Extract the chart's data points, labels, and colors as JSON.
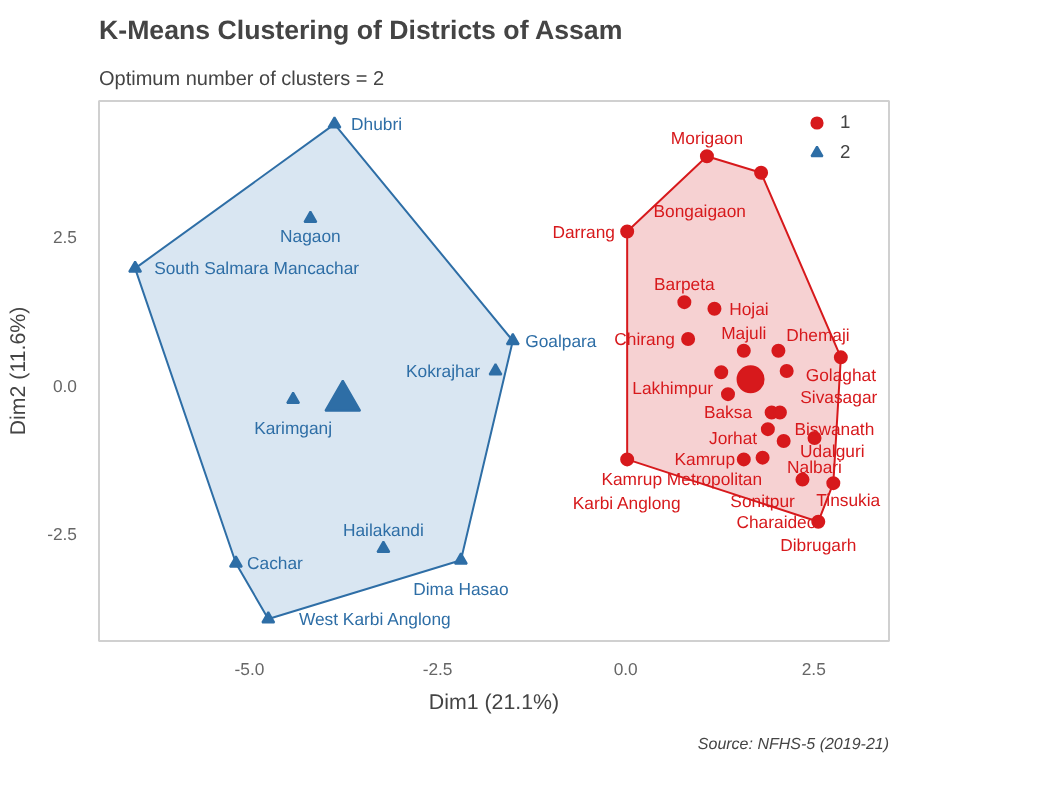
{
  "chart_data": {
    "type": "scatter",
    "title": "K-Means Clustering of Districts of Assam",
    "subtitle": "Optimum number of clusters = 2",
    "xlabel": "Dim1 (21.1%)",
    "ylabel": "Dim2 (11.6%)",
    "xlim": [
      -7.0,
      3.5
    ],
    "ylim": [
      -4.3,
      4.8
    ],
    "xticks": [
      {
        "value": -5,
        "label": "-5.0"
      },
      {
        "value": -2.5,
        "label": "-2.5"
      },
      {
        "value": 0,
        "label": "0.0"
      },
      {
        "value": 2.5,
        "label": "2.5"
      }
    ],
    "yticks": [
      {
        "value": -2.5,
        "label": "-2.5"
      },
      {
        "value": 0,
        "label": "0.0"
      },
      {
        "value": 2.5,
        "label": "2.5"
      }
    ],
    "grid": false,
    "legend": "top right",
    "series": [
      {
        "type": "area",
        "color": "#f4c6c7",
        "x": [
          1.08,
          1.8,
          2.86,
          2.76,
          2.56,
          0.02,
          0.02
        ],
        "values": [
          3.87,
          3.59,
          0.48,
          -1.64,
          -2.29,
          -1.24,
          2.6
        ]
      },
      {
        "type": "area",
        "color": "#cfe0ef",
        "x": [
          -3.87,
          -1.5,
          -2.19,
          -4.75,
          -5.18,
          -6.52
        ],
        "values": [
          4.41,
          0.76,
          -2.94,
          -3.93,
          -2.99,
          1.98
        ]
      },
      {
        "name": "1",
        "color": "#d7191c",
        "marker": "circle",
        "x": [
          1.08,
          1.8,
          0.02,
          0.78,
          1.18,
          0.83,
          1.57,
          2.03,
          2.86,
          1.27,
          2.14,
          1.36,
          1.94,
          2.05,
          1.89,
          2.1,
          2.51,
          0.02,
          1.57,
          1.82,
          2.35,
          2.76,
          2.56
        ],
        "values": [
          3.87,
          3.59,
          2.6,
          1.41,
          1.3,
          0.79,
          0.59,
          0.59,
          0.48,
          0.23,
          0.25,
          -0.14,
          -0.45,
          -0.45,
          -0.73,
          -0.93,
          -0.88,
          -1.24,
          -1.24,
          -1.21,
          -1.58,
          -1.64,
          -2.29
        ]
      },
      {
        "name": "2",
        "color": "#2e6ea6",
        "marker": "triangle",
        "x": [
          -3.87,
          -4.19,
          -6.52,
          -1.5,
          -1.73,
          -4.42,
          -3.22,
          -2.19,
          -5.18,
          -4.75
        ],
        "values": [
          4.41,
          2.82,
          1.98,
          0.76,
          0.25,
          -0.23,
          -2.74,
          -2.94,
          -2.99,
          -3.93
        ]
      },
      {
        "type": "bubble",
        "color": "#d7191c",
        "marker": "circle",
        "x": [
          1.66
        ],
        "values": [
          0.11
        ],
        "sizes": [
          1
        ]
      },
      {
        "type": "bubble",
        "color": "#2e6ea6",
        "marker": "triangle",
        "x": [
          -3.76
        ],
        "values": [
          -0.25
        ],
        "sizes": [
          1
        ]
      }
    ],
    "annotations": [
      {
        "text": "Morigaon",
        "x": 1.08,
        "y": 3.87
      },
      {
        "text": "Bongaigaon",
        "x": 1.8,
        "y": 3.59
      },
      {
        "text": "Darrang",
        "x": 0.02,
        "y": 2.6
      },
      {
        "text": "Barpeta",
        "x": 0.78,
        "y": 1.41
      },
      {
        "text": "Hojai",
        "x": 1.18,
        "y": 1.3
      },
      {
        "text": "Chirang",
        "x": 0.83,
        "y": 0.79
      },
      {
        "text": "Majuli",
        "x": 1.57,
        "y": 0.59
      },
      {
        "text": "Dhemaji",
        "x": 2.03,
        "y": 0.59
      },
      {
        "text": "Golaghat",
        "x": 2.86,
        "y": 0.48
      },
      {
        "text": "Lakhimpur",
        "x": 1.27,
        "y": 0.23
      },
      {
        "text": "Sivasagar",
        "x": 2.14,
        "y": 0.25
      },
      {
        "text": "Baksa",
        "x": 1.36,
        "y": -0.14
      },
      {
        "text": "Jorhat",
        "x": 1.94,
        "y": -0.45
      },
      {
        "text": "Udalguri",
        "x": 2.05,
        "y": -0.45
      },
      {
        "text": "Biswanath",
        "x": 1.89,
        "y": -0.73
      },
      {
        "text": "Kamrup Metropolitan",
        "x": 2.1,
        "y": -0.93
      },
      {
        "text": "Nalbari",
        "x": 2.51,
        "y": -0.88
      },
      {
        "text": "Karbi Anglong",
        "x": 0.02,
        "y": -1.24
      },
      {
        "text": "Kamrup",
        "x": 1.57,
        "y": -1.24
      },
      {
        "text": "Sonitpur",
        "x": 1.82,
        "y": -1.21
      },
      {
        "text": "Tinsukia",
        "x": 2.35,
        "y": -1.58
      },
      {
        "text": "Charaideo",
        "x": 2.76,
        "y": -1.64
      },
      {
        "text": "Dibrugarh",
        "x": 2.56,
        "y": -2.29
      },
      {
        "text": "Dhubri",
        "x": -3.87,
        "y": 4.41
      },
      {
        "text": "Nagaon",
        "x": -4.19,
        "y": 2.82
      },
      {
        "text": "South Salmara Mancachar",
        "x": -6.52,
        "y": 1.98
      },
      {
        "text": "Goalpara",
        "x": -1.5,
        "y": 0.76
      },
      {
        "text": "Kokrajhar",
        "x": -1.73,
        "y": 0.25
      },
      {
        "text": "Karimganj",
        "x": -4.42,
        "y": -0.23
      },
      {
        "text": "Hailakandi",
        "x": -3.22,
        "y": -2.74
      },
      {
        "text": "Dima Hasao",
        "x": -2.19,
        "y": -2.94
      },
      {
        "text": "Cachar",
        "x": -5.18,
        "y": -2.99
      },
      {
        "text": "West Karbi Anglong",
        "x": -4.75,
        "y": -3.93
      },
      "Source: NFHS-5 (2019-21)"
    ]
  }
}
